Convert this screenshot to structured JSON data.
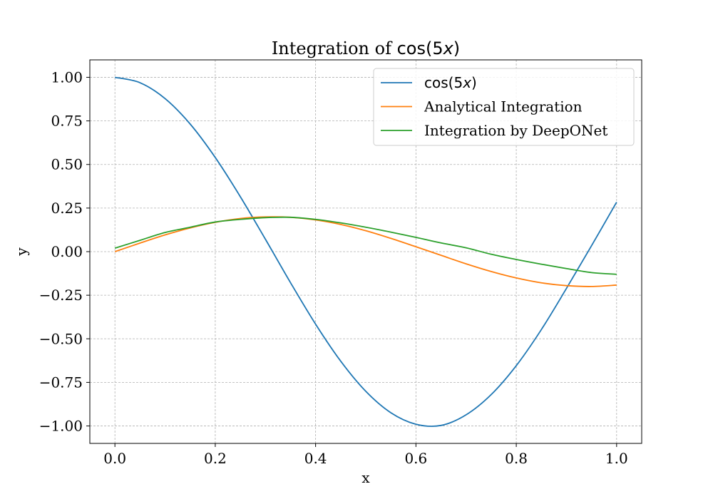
{
  "chart_data": {
    "type": "line",
    "title": "Integration of cos(5x)",
    "xlabel": "x",
    "ylabel": "y",
    "xlim": [
      -0.05,
      1.05
    ],
    "ylim": [
      -1.1,
      1.1
    ],
    "xticks": [
      0.0,
      0.2,
      0.4,
      0.6,
      0.8,
      1.0
    ],
    "xtick_labels": [
      "0.0",
      "0.2",
      "0.4",
      "0.6",
      "0.8",
      "1.0"
    ],
    "yticks": [
      1.0,
      0.75,
      0.5,
      0.25,
      0.0,
      -0.25,
      -0.5,
      -0.75,
      -1.0
    ],
    "ytick_labels": [
      "1.00",
      "0.75",
      "0.50",
      "0.25",
      "0.00",
      "−0.25",
      "−0.50",
      "−0.75",
      "−1.00"
    ],
    "grid": true,
    "legend_position": "top-right",
    "series": [
      {
        "name": "cos(5x)",
        "color": "#1f77b4",
        "x": [
          0.0,
          0.05,
          0.1,
          0.15,
          0.2,
          0.25,
          0.3,
          0.35,
          0.4,
          0.45,
          0.5,
          0.55,
          0.6,
          0.65,
          0.7,
          0.75,
          0.8,
          0.85,
          0.9,
          0.95,
          1.0
        ],
        "y": [
          1.0,
          0.969,
          0.878,
          0.732,
          0.54,
          0.315,
          0.071,
          -0.178,
          -0.416,
          -0.628,
          -0.801,
          -0.924,
          -0.99,
          -0.997,
          -0.936,
          -0.82,
          -0.654,
          -0.447,
          -0.211,
          0.034,
          0.284
        ]
      },
      {
        "name": "Analytical Integration",
        "color": "#ff7f0e",
        "x": [
          0.0,
          0.05,
          0.1,
          0.15,
          0.2,
          0.25,
          0.3,
          0.35,
          0.4,
          0.45,
          0.5,
          0.55,
          0.6,
          0.65,
          0.7,
          0.75,
          0.8,
          0.85,
          0.9,
          0.95,
          1.0
        ],
        "y": [
          0.0,
          0.049,
          0.096,
          0.136,
          0.168,
          0.19,
          0.199,
          0.197,
          0.182,
          0.156,
          0.12,
          0.076,
          0.028,
          -0.021,
          -0.07,
          -0.114,
          -0.151,
          -0.179,
          -0.195,
          -0.2,
          -0.192
        ]
      },
      {
        "name": "Integration by DeepONet",
        "color": "#2ca02c",
        "x": [
          0.0,
          0.05,
          0.1,
          0.15,
          0.2,
          0.25,
          0.3,
          0.35,
          0.4,
          0.45,
          0.5,
          0.55,
          0.6,
          0.65,
          0.7,
          0.75,
          0.8,
          0.85,
          0.9,
          0.95,
          1.0
        ],
        "y": [
          0.02,
          0.065,
          0.11,
          0.14,
          0.17,
          0.185,
          0.195,
          0.197,
          0.185,
          0.165,
          0.14,
          0.112,
          0.082,
          0.05,
          0.022,
          -0.015,
          -0.045,
          -0.072,
          -0.097,
          -0.12,
          -0.13
        ]
      }
    ]
  }
}
